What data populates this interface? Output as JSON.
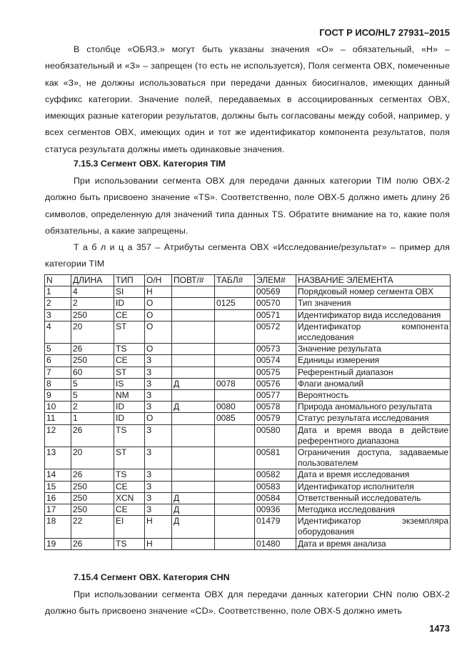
{
  "header": "ГОСТ Р ИСО/HL7 27931–2015",
  "para1": "В столбце «ОБЯЗ.» могут быть указаны значения «О» – обязательный, «Н» – необязательный и «З» – запрещен (то есть не используется), Поля сегмента OBX, помеченные как «З», не должны использоваться при передачи данных биосигналов, имеющих данный суффикс категории. Значение полей, передаваемых в ассоциированных сегментах OBX, имеющих разные категории результатов, должны быть согласованы между собой, например, у всех сегментов OBX, имеющих один и тот же идентификатор компонента результатов, поля статуса результата должны иметь одинаковые значения.",
  "heading1": "7.15.3 Сегмент OBX. Категория TIM",
  "para2": "При использовании сегмента OBX для передачи данных категории TIM полю OBX-2 должно быть присвоено значение «TS». Соответственно, поле OBX-5 должно иметь длину 26 символов, определенную для значений типа данных TS. Обратите внимание на то, какие поля обязательны, а какие запрещены.",
  "caption": "Т а б л и ц а 357 – Атрибуты сегмента OBX «Исследование/результат» – пример для категории TIM",
  "table": {
    "headers": [
      "N",
      "ДЛИНА",
      "ТИП",
      "О/Н",
      "ПОВТ/#",
      "ТАБЛ#",
      "ЭЛЕМ#",
      "НАЗВАНИЕ ЭЛЕМЕНТА"
    ],
    "rows": [
      [
        "1",
        "4",
        "SI",
        "Н",
        "",
        "",
        "00569",
        "Порядковый номер сегмента OBX"
      ],
      [
        "2",
        "2",
        "ID",
        "О",
        "",
        "0125",
        "00570",
        "Тип значения"
      ],
      [
        "3",
        "250",
        "CE",
        "О",
        "",
        "",
        "00571",
        "Идентификатор вида исследования"
      ],
      [
        "4",
        "20",
        "ST",
        "О",
        "",
        "",
        "00572",
        "Идентификатор компонента исследования"
      ],
      [
        "5",
        "26",
        "TS",
        "О",
        "",
        "",
        "00573",
        "Значение результата"
      ],
      [
        "6",
        "250",
        "CE",
        "З",
        "",
        "",
        "00574",
        "Единицы измерения"
      ],
      [
        "7",
        "60",
        "ST",
        "З",
        "",
        "",
        "00575",
        "Референтный диапазон"
      ],
      [
        "8",
        "5",
        "IS",
        "З",
        "Д",
        "0078",
        "00576",
        "Флаги аномалий"
      ],
      [
        "9",
        "5",
        "NM",
        "З",
        "",
        "",
        "00577",
        "Вероятность"
      ],
      [
        "10",
        "2",
        "ID",
        "З",
        "Д",
        "0080",
        "00578",
        "Природа аномального результата"
      ],
      [
        "11",
        "1",
        "ID",
        "О",
        "",
        "0085",
        "00579",
        "Статус результата исследования"
      ],
      [
        "12",
        "26",
        "TS",
        "З",
        "",
        "",
        "00580",
        "Дата и время ввода в действие референтного диапазона"
      ],
      [
        "13",
        "20",
        "ST",
        "З",
        "",
        "",
        "00581",
        "Ограничения доступа, задаваемые пользователем"
      ],
      [
        "14",
        "26",
        "TS",
        "З",
        "",
        "",
        "00582",
        "Дата и время исследования"
      ],
      [
        "15",
        "250",
        "CE",
        "З",
        "",
        "",
        "00583",
        "Идентификатор исполнителя"
      ],
      [
        "16",
        "250",
        "XCN",
        "З",
        "Д",
        "",
        "00584",
        "Ответственный исследователь"
      ],
      [
        "17",
        "250",
        "CE",
        "З",
        "Д",
        "",
        "00936",
        "Методика исследования"
      ],
      [
        "18",
        "22",
        "EI",
        "Н",
        "Д",
        "",
        "01479",
        "Идентификатор экземпляра оборудования"
      ],
      [
        "19",
        "26",
        "TS",
        "Н",
        "",
        "",
        "01480",
        "Дата и время анализа"
      ]
    ]
  },
  "heading2": "7.15.4 Сегмент OBX. Категория CHN",
  "para3": "При использовании сегмента OBX для передачи данных категории CHN полю OBX-2 должно быть присвоено значение «CD». Соответственно, поле OBX-5 должно иметь",
  "page_number": "1473"
}
